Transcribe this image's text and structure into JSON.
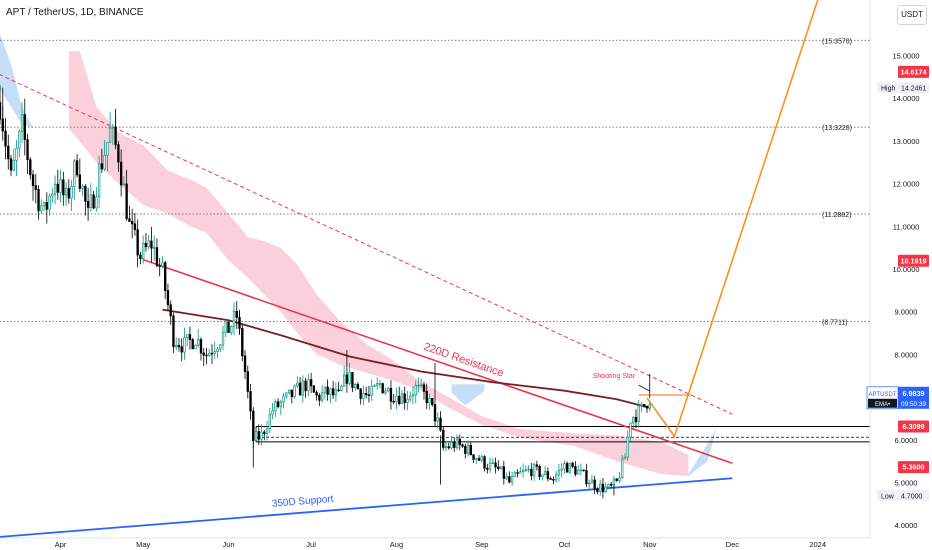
{
  "header": {
    "title": "APT / TetherUS, 1D, BINANCE",
    "currency_button": "USDT"
  },
  "chart_data": {
    "type": "candlestick",
    "symbol": "APTUSDT",
    "interval": "1D",
    "exchange": "BINANCE",
    "y_axis": {
      "min": 3.7,
      "max": 16.3,
      "ticks": [
        "4.0000",
        "5.0000",
        "6.0000",
        "7.0000",
        "8.0000",
        "9.0000",
        "10.0000",
        "11.0000",
        "12.0000",
        "13.0000",
        "14.0000",
        "15.0000"
      ]
    },
    "x_axis": {
      "range": [
        "2023-03-10",
        "2024-01-20"
      ],
      "ticks": [
        {
          "label": "Apr",
          "date": "2023-04-01"
        },
        {
          "label": "May",
          "date": "2023-05-01"
        },
        {
          "label": "Jun",
          "date": "2023-06-01"
        },
        {
          "label": "Jul",
          "date": "2023-07-01"
        },
        {
          "label": "Aug",
          "date": "2023-08-01"
        },
        {
          "label": "Sep",
          "date": "2023-09-01"
        },
        {
          "label": "Oct",
          "date": "2023-10-01"
        },
        {
          "label": "Nov",
          "date": "2023-11-01"
        },
        {
          "label": "Dec",
          "date": "2023-12-01"
        },
        {
          "label": "2024",
          "date": "2024-01-01"
        }
      ]
    },
    "close_path": [
      [
        "2023-03-10",
        13.9
      ],
      [
        "2023-03-14",
        12.1
      ],
      [
        "2023-03-18",
        13.3
      ],
      [
        "2023-03-22",
        12.0
      ],
      [
        "2023-03-26",
        11.3
      ],
      [
        "2023-03-30",
        12.1
      ],
      [
        "2023-04-03",
        11.6
      ],
      [
        "2023-04-07",
        12.5
      ],
      [
        "2023-04-11",
        11.2
      ],
      [
        "2023-04-15",
        12.3
      ],
      [
        "2023-04-19",
        13.2
      ],
      [
        "2023-04-22",
        12.7
      ],
      [
        "2023-04-26",
        11.0
      ],
      [
        "2023-04-30",
        10.3
      ],
      [
        "2023-05-04",
        10.6
      ],
      [
        "2023-05-08",
        9.9
      ],
      [
        "2023-05-12",
        8.4
      ],
      [
        "2023-05-16",
        8.2
      ],
      [
        "2023-05-20",
        8.4
      ],
      [
        "2023-05-24",
        8.0
      ],
      [
        "2023-05-28",
        8.3
      ],
      [
        "2023-06-01",
        8.6
      ],
      [
        "2023-06-04",
        8.9
      ],
      [
        "2023-06-07",
        7.6
      ],
      [
        "2023-06-10",
        6.0
      ],
      [
        "2023-06-13",
        6.1
      ],
      [
        "2023-06-17",
        6.7
      ],
      [
        "2023-06-21",
        6.9
      ],
      [
        "2023-06-25",
        7.1
      ],
      [
        "2023-06-29",
        7.3
      ],
      [
        "2023-07-03",
        7.0
      ],
      [
        "2023-07-07",
        7.1
      ],
      [
        "2023-07-11",
        7.0
      ],
      [
        "2023-07-14",
        7.5
      ],
      [
        "2023-07-18",
        7.2
      ],
      [
        "2023-07-22",
        7.0
      ],
      [
        "2023-07-26",
        7.3
      ],
      [
        "2023-07-30",
        7.1
      ],
      [
        "2023-08-04",
        7.0
      ],
      [
        "2023-08-08",
        7.2
      ],
      [
        "2023-08-12",
        7.0
      ],
      [
        "2023-08-16",
        6.4
      ],
      [
        "2023-08-18",
        5.8
      ],
      [
        "2023-08-22",
        5.9
      ],
      [
        "2023-08-26",
        5.8
      ],
      [
        "2023-08-30",
        5.6
      ],
      [
        "2023-09-03",
        5.4
      ],
      [
        "2023-09-07",
        5.3
      ],
      [
        "2023-09-11",
        5.0
      ],
      [
        "2023-09-15",
        5.2
      ],
      [
        "2023-09-19",
        5.3
      ],
      [
        "2023-09-23",
        5.2
      ],
      [
        "2023-09-27",
        5.1
      ],
      [
        "2023-10-01",
        5.4
      ],
      [
        "2023-10-05",
        5.3
      ],
      [
        "2023-10-09",
        5.1
      ],
      [
        "2023-10-13",
        4.9
      ],
      [
        "2023-10-17",
        4.85
      ],
      [
        "2023-10-20",
        5.0
      ],
      [
        "2023-10-23",
        5.6
      ],
      [
        "2023-10-25",
        6.5
      ],
      [
        "2023-10-27",
        6.6
      ],
      [
        "2023-10-29",
        6.7
      ],
      [
        "2023-10-31",
        6.9
      ],
      [
        "2023-11-01",
        6.98
      ]
    ],
    "swing_highs": [
      [
        "2023-03-11",
        14.2461
      ],
      [
        "2023-04-21",
        13.75
      ],
      [
        "2023-06-05",
        9.0
      ],
      [
        "2023-07-14",
        8.1
      ],
      [
        "2023-08-15",
        7.8
      ],
      [
        "2023-11-01",
        7.55
      ]
    ],
    "swing_lows": [
      [
        "2023-06-10",
        5.35
      ],
      [
        "2023-08-17",
        4.95
      ],
      [
        "2023-10-19",
        4.7
      ]
    ],
    "fib_levels": [
      {
        "label": "(15.3570)",
        "value": 15.357
      },
      {
        "label": "(13.3226)",
        "value": 13.3226
      },
      {
        "label": "(11.2882)",
        "value": 11.2882
      },
      {
        "label": "(8.7711)",
        "value": 8.7711
      }
    ],
    "horizontal_levels": [
      6.3099,
      6.06,
      5.95
    ],
    "annotations": {
      "resistance_label": "220D Resistance",
      "support_label": "350D Support",
      "shooting_star_label": "Shooting Star"
    },
    "resistance_line": [
      [
        "2023-05-01",
        10.22
      ],
      [
        "2023-12-01",
        5.45
      ]
    ],
    "support_line": [
      [
        "2023-03-05",
        3.7
      ],
      [
        "2023-12-01",
        5.1
      ]
    ],
    "dashed_trendline": [
      [
        "2023-03-05",
        14.7
      ],
      [
        "2023-12-01",
        6.6
      ]
    ],
    "ma_line": [
      [
        "2023-05-08",
        9.05
      ],
      [
        "2023-06-01",
        8.8
      ],
      [
        "2023-06-20",
        8.45
      ],
      [
        "2023-07-15",
        7.95
      ],
      [
        "2023-08-10",
        7.6
      ],
      [
        "2023-09-05",
        7.35
      ],
      [
        "2023-10-01",
        7.15
      ],
      [
        "2023-10-20",
        6.95
      ],
      [
        "2023-11-01",
        6.75
      ]
    ],
    "projection": [
      [
        "2023-10-31",
        6.98
      ],
      [
        "2023-11-10",
        6.08
      ],
      [
        "2024-01-01",
        16.3
      ]
    ],
    "projection_top_box": {
      "from": "2023-10-28",
      "to": "2023-11-16",
      "value": 7.05
    },
    "cloud_pink_top": [
      [
        "2023-04-04",
        15.1
      ],
      [
        "2023-04-08",
        15.1
      ],
      [
        "2023-04-14",
        13.8
      ],
      [
        "2023-04-22",
        13.2
      ],
      [
        "2023-05-01",
        12.9
      ],
      [
        "2023-05-10",
        12.3
      ],
      [
        "2023-05-18",
        12.1
      ],
      [
        "2023-05-24",
        11.9
      ],
      [
        "2023-06-01",
        11.3
      ],
      [
        "2023-06-08",
        10.75
      ],
      [
        "2023-06-14",
        10.65
      ],
      [
        "2023-06-20",
        10.5
      ],
      [
        "2023-06-26",
        10.1
      ],
      [
        "2023-07-03",
        9.4
      ],
      [
        "2023-07-12",
        8.75
      ],
      [
        "2023-07-22",
        8.2
      ],
      [
        "2023-07-30",
        7.9
      ],
      [
        "2023-08-10",
        7.35
      ],
      [
        "2023-08-20",
        7.0
      ],
      [
        "2023-09-01",
        6.55
      ],
      [
        "2023-09-15",
        6.25
      ],
      [
        "2023-10-05",
        6.15
      ],
      [
        "2023-10-20",
        6.1
      ],
      [
        "2023-11-05",
        5.95
      ],
      [
        "2023-11-15",
        5.65
      ]
    ],
    "cloud_pink_bottom": [
      [
        "2023-04-04",
        13.3
      ],
      [
        "2023-04-14",
        12.5
      ],
      [
        "2023-04-22",
        12.0
      ],
      [
        "2023-05-01",
        11.5
      ],
      [
        "2023-05-10",
        11.3
      ],
      [
        "2023-05-18",
        11.0
      ],
      [
        "2023-05-24",
        10.85
      ],
      [
        "2023-06-01",
        10.2
      ],
      [
        "2023-06-08",
        9.8
      ],
      [
        "2023-06-14",
        9.4
      ],
      [
        "2023-06-20",
        9.0
      ],
      [
        "2023-06-26",
        8.5
      ],
      [
        "2023-07-03",
        8.0
      ],
      [
        "2023-07-12",
        7.75
      ],
      [
        "2023-07-22",
        7.55
      ],
      [
        "2023-07-30",
        7.4
      ],
      [
        "2023-08-10",
        7.15
      ],
      [
        "2023-08-20",
        6.75
      ],
      [
        "2023-09-01",
        6.35
      ],
      [
        "2023-09-15",
        6.05
      ],
      [
        "2023-10-05",
        5.85
      ],
      [
        "2023-10-20",
        5.5
      ],
      [
        "2023-11-05",
        5.2
      ],
      [
        "2023-11-15",
        5.15
      ]
    ],
    "cloud_blue_top": [
      [
        "2023-03-10",
        15.5
      ],
      [
        "2023-03-14",
        14.8
      ],
      [
        "2023-03-18",
        13.8
      ],
      [
        "2023-03-22",
        13.3
      ]
    ],
    "cloud_blue_bottom": [
      [
        "2023-03-10",
        14.2
      ],
      [
        "2023-03-14",
        13.8
      ],
      [
        "2023-03-18",
        13.4
      ],
      [
        "2023-03-22",
        13.3
      ]
    ],
    "cloud_blue2_top": [
      [
        "2023-08-21",
        7.3
      ],
      [
        "2023-08-26",
        7.3
      ],
      [
        "2023-09-02",
        7.3
      ]
    ],
    "cloud_blue2_bottom": [
      [
        "2023-08-21",
        7.1
      ],
      [
        "2023-08-26",
        6.8
      ],
      [
        "2023-09-02",
        7.15
      ]
    ],
    "cloud_blue3_top": [
      [
        "2023-11-15",
        5.2
      ],
      [
        "2023-11-23",
        6.0
      ],
      [
        "2023-11-25",
        6.25
      ]
    ],
    "cloud_blue3_bottom": [
      [
        "2023-11-15",
        5.15
      ],
      [
        "2023-11-22",
        5.5
      ],
      [
        "2023-11-25",
        6.2
      ]
    ],
    "price_tags": [
      {
        "text": "14.6174",
        "value": 14.6174,
        "color": "#f23645"
      },
      {
        "text": "10.1919",
        "value": 10.1919,
        "color": "#f23645"
      },
      {
        "text": "6.3099",
        "value": 6.3099,
        "color": "#f23645"
      },
      {
        "text": "5.3600",
        "value": 5.36,
        "color": "#f23645"
      }
    ],
    "high_label": {
      "prefix": "High",
      "text": "14.2461",
      "value": 14.2461
    },
    "low_label": {
      "prefix": "Low",
      "text": "4.7000",
      "value": 4.7
    },
    "current_price": {
      "symbol": "APTUSDT",
      "price": "6.9839",
      "countdown": "09:50:39",
      "indicator": "EMA•",
      "value": 6.9839,
      "color": "#2962ff"
    },
    "colors": {
      "up": "#089981",
      "down": "#000000",
      "resistance": "#e8364c",
      "support": "#2962ff",
      "ma": "#7b1e26",
      "projection": "#f7931a",
      "cloud_pink": "#f9c0cf",
      "cloud_blue": "#b3d4f5"
    }
  }
}
